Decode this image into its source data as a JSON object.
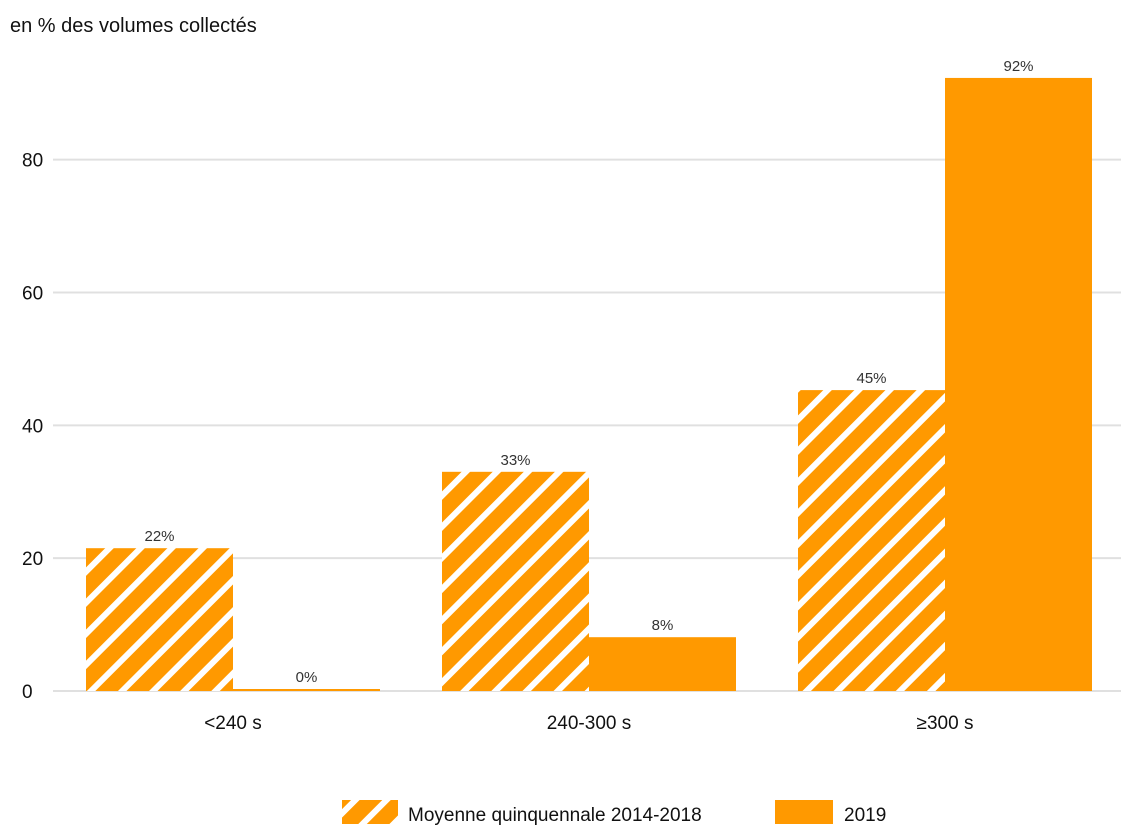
{
  "chart_data": {
    "type": "bar",
    "ylabel": "en % des volumes collectés",
    "categories": [
      "<240 s",
      "240-300 s",
      "≥300 s"
    ],
    "ylim": [
      0,
      95
    ],
    "yticks": [
      0,
      20,
      40,
      60,
      80
    ],
    "grid": true,
    "legend_position": "bottom",
    "colors": {
      "bar": "#ff9900",
      "hatch_stripe": "#ffffff"
    },
    "series": [
      {
        "name": "Moyenne quinquennale 2014-2018",
        "style": "hatched",
        "values": [
          21.5,
          33,
          45.3
        ],
        "labels": [
          "22%",
          "33%",
          "45%"
        ]
      },
      {
        "name": "2019",
        "style": "solid",
        "values": [
          0.3,
          8.1,
          92.3
        ],
        "labels": [
          "0%",
          "8%",
          "92%"
        ]
      }
    ]
  }
}
